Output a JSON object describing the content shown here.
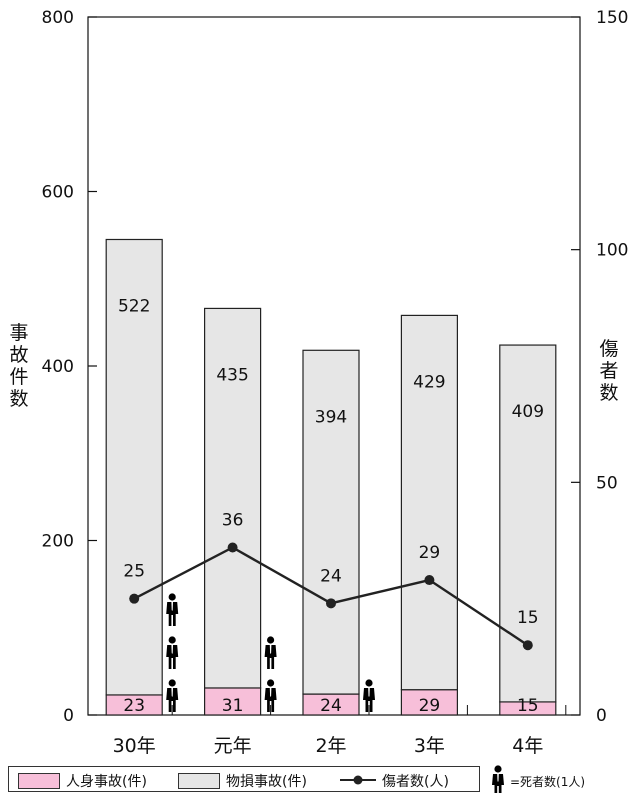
{
  "chart_data": {
    "type": "bar",
    "categories": [
      "30年",
      "元年",
      "2年",
      "3年",
      "4年"
    ],
    "series": [
      {
        "name": "人身事故(件)",
        "values": [
          23,
          31,
          24,
          29,
          15
        ],
        "color": "#f7bfd9"
      },
      {
        "name": "物損事故(件)",
        "values": [
          522,
          435,
          394,
          429,
          409
        ],
        "color": "#e6e6e6"
      },
      {
        "name": "傷者数(人)",
        "values": [
          25,
          36,
          24,
          29,
          15
        ],
        "axis": "right",
        "color": "#222222"
      }
    ],
    "deaths": [
      3,
      2,
      1,
      0,
      0
    ],
    "y_left": {
      "label": "事故件数",
      "ticks": [
        "0",
        "200",
        "400",
        "600",
        "800"
      ],
      "ylim": [
        0,
        800
      ]
    },
    "y_right": {
      "label": "傷者数",
      "ticks": [
        "0",
        "50",
        "100",
        "150"
      ],
      "ylim": [
        0,
        150
      ]
    },
    "death_legend": "=死者数(1人)"
  }
}
